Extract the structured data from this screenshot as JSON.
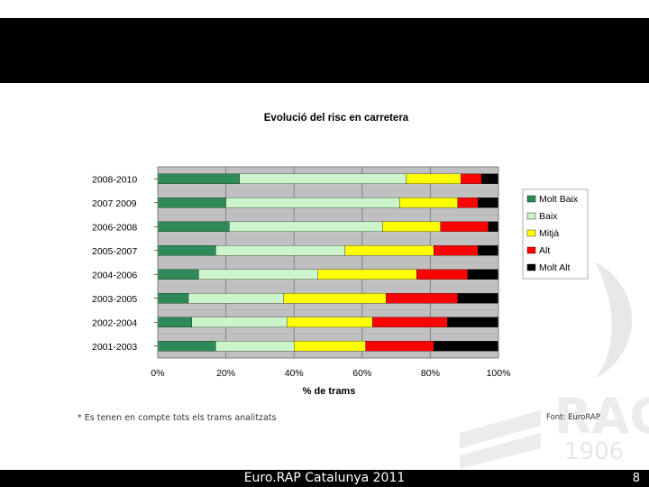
{
  "slide": {
    "footer_title": "Euro.RAP Catalunya 2011",
    "page_number": "8",
    "note": "* Es tenen en compte tots els trams analitzats",
    "source": "Font: EuroRAP",
    "watermark_text": "1906"
  },
  "chart_data": {
    "type": "bar",
    "orientation": "horizontal",
    "stacked": "percent",
    "title": "Evolució del risc en carretera",
    "xlabel": "% de trams",
    "ylabel": "",
    "xlim": [
      0,
      100
    ],
    "x_ticks": [
      "0%",
      "20%",
      "40%",
      "60%",
      "80%",
      "100%"
    ],
    "categories": [
      "2008-2010",
      "2007 2009",
      "2006-2008",
      "2005-2007",
      "2004-2006",
      "2003-2005",
      "2002-2004",
      "2001-2003"
    ],
    "series": [
      {
        "name": "Molt Baix",
        "color": "#2e8b57",
        "values": [
          24,
          20,
          21,
          17,
          12,
          9,
          10,
          17
        ]
      },
      {
        "name": "Baix",
        "color": "#ccf5cc",
        "values": [
          49,
          51,
          45,
          38,
          35,
          28,
          28,
          23
        ]
      },
      {
        "name": "Mitjà",
        "color": "#ffff00",
        "values": [
          16,
          17,
          17,
          26,
          29,
          30,
          25,
          21
        ]
      },
      {
        "name": "Alt",
        "color": "#ff0000",
        "values": [
          6,
          6,
          14,
          13,
          15,
          21,
          22,
          20
        ]
      },
      {
        "name": "Molt Alt",
        "color": "#000000",
        "values": [
          5,
          6,
          3,
          6,
          9,
          12,
          15,
          19
        ]
      }
    ],
    "grid": true,
    "legend": "right"
  }
}
